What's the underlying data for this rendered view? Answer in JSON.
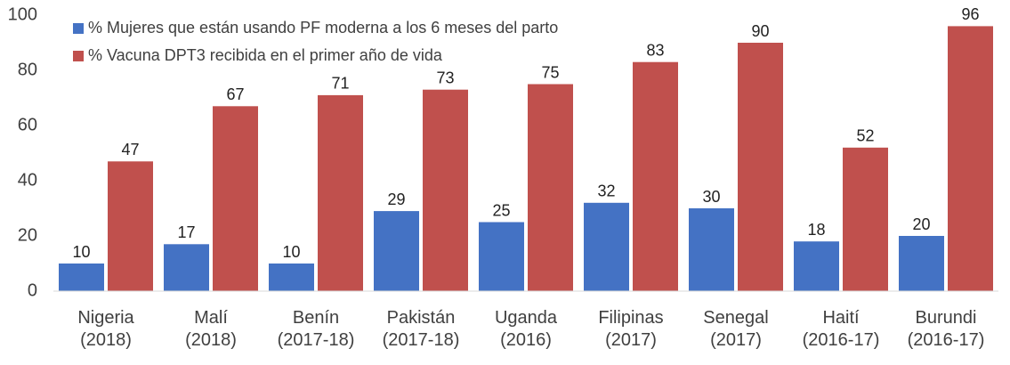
{
  "chart_data": {
    "type": "bar",
    "categories": [
      "Nigeria (2018)",
      "Malí (2018)",
      "Benín (2017-18)",
      "Pakistán (2017-18)",
      "Uganda (2016)",
      "Filipinas (2017)",
      "Senegal (2017)",
      "Haití (2016-17)",
      "Burundi (2016-17)"
    ],
    "series": [
      {
        "name": "% Mujeres que están usando PF moderna a los 6 meses del parto",
        "color": "#4472c4",
        "values": [
          10,
          17,
          10,
          29,
          25,
          32,
          30,
          18,
          20
        ]
      },
      {
        "name": "% Vacuna DPT3 recibida en el primer año de vida",
        "color": "#c0504d",
        "values": [
          47,
          67,
          71,
          73,
          75,
          83,
          90,
          52,
          96
        ]
      }
    ],
    "ylim": [
      0,
      100
    ],
    "yticks": [
      0,
      20,
      40,
      60,
      80,
      100
    ],
    "grid": false,
    "legend": "top-left"
  }
}
